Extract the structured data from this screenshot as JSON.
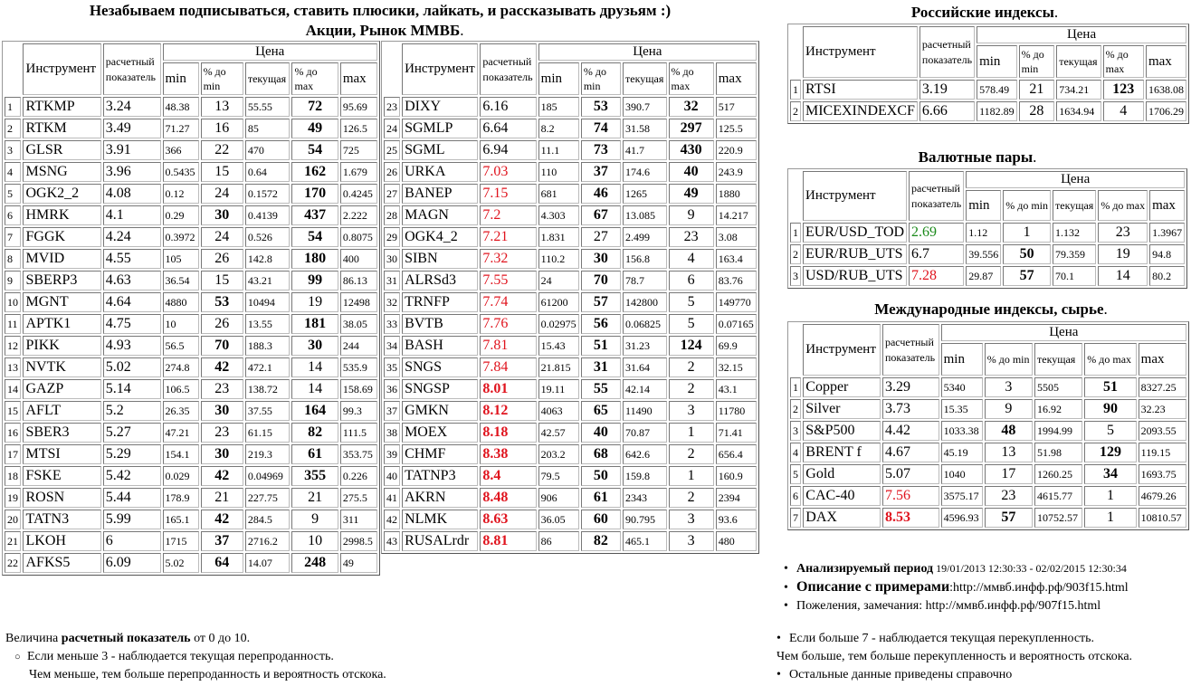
{
  "header": {
    "line1": "Незабываем подписываться, ставить плюсики, лайкать, и рассказывать друзьям :)",
    "line2": "Акции, Рынок ММВБ",
    "line2_dot": "."
  },
  "columns": {
    "instrument": "Инструмент",
    "calc": "расчетный показатель",
    "price": "Цена",
    "min": "min",
    "pct_min": "% до min",
    "current": "текущая",
    "pct_max": "% до max",
    "max": "max"
  },
  "tables": [
    {
      "rows": [
        [
          "1",
          "RTKMP",
          "3.24",
          "48.38",
          "13",
          "55.55",
          "72",
          "95.69"
        ],
        [
          "2",
          "RTKM",
          "3.49",
          "71.27",
          "16",
          "85",
          "49",
          "126.5"
        ],
        [
          "3",
          "GLSR",
          "3.91",
          "366",
          "22",
          "470",
          "54",
          "725"
        ],
        [
          "4",
          "MSNG",
          "3.96",
          "0.5435",
          "15",
          "0.64",
          "162",
          "1.679"
        ],
        [
          "5",
          "OGK2_2",
          "4.08",
          "0.12",
          "24",
          "0.1572",
          "170",
          "0.4245"
        ],
        [
          "6",
          "HMRK",
          "4.1",
          "0.29",
          "30",
          "0.4139",
          "437",
          "2.222"
        ],
        [
          "7",
          "FGGK",
          "4.24",
          "0.3972",
          "24",
          "0.526",
          "54",
          "0.8075"
        ],
        [
          "8",
          "MVID",
          "4.55",
          "105",
          "26",
          "142.8",
          "180",
          "400"
        ],
        [
          "9",
          "SBERP3",
          "4.63",
          "36.54",
          "15",
          "43.21",
          "99",
          "86.13"
        ],
        [
          "10",
          "MGNT",
          "4.64",
          "4880",
          "53",
          "10494",
          "19",
          "12498"
        ],
        [
          "11",
          "APTK1",
          "4.75",
          "10",
          "26",
          "13.55",
          "181",
          "38.05"
        ],
        [
          "12",
          "PIKK",
          "4.93",
          "56.5",
          "70",
          "188.3",
          "30",
          "244"
        ],
        [
          "13",
          "NVTK",
          "5.02",
          "274.8",
          "42",
          "472.1",
          "14",
          "535.9"
        ],
        [
          "14",
          "GAZP",
          "5.14",
          "106.5",
          "23",
          "138.72",
          "14",
          "158.69"
        ],
        [
          "15",
          "AFLT",
          "5.2",
          "26.35",
          "30",
          "37.55",
          "164",
          "99.3"
        ],
        [
          "16",
          "SBER3",
          "5.27",
          "47.21",
          "23",
          "61.15",
          "82",
          "111.5"
        ],
        [
          "17",
          "MTSI",
          "5.29",
          "154.1",
          "30",
          "219.3",
          "61",
          "353.75"
        ],
        [
          "18",
          "FSKE",
          "5.42",
          "0.029",
          "42",
          "0.04969",
          "355",
          "0.226"
        ],
        [
          "19",
          "ROSN",
          "5.44",
          "178.9",
          "21",
          "227.75",
          "21",
          "275.5"
        ],
        [
          "20",
          "TATN3",
          "5.99",
          "165.1",
          "42",
          "284.5",
          "9",
          "311"
        ],
        [
          "21",
          "LKOH",
          "6",
          "1715",
          "37",
          "2716.2",
          "10",
          "2998.5"
        ],
        [
          "22",
          "AFKS5",
          "6.09",
          "5.02",
          "64",
          "14.07",
          "248",
          "49"
        ]
      ]
    },
    {
      "rows": [
        [
          "23",
          "DIXY",
          "6.16",
          "185",
          "53",
          "390.7",
          "32",
          "517"
        ],
        [
          "24",
          "SGMLP",
          "6.64",
          "8.2",
          "74",
          "31.58",
          "297",
          "125.5"
        ],
        [
          "25",
          "SGML",
          "6.94",
          "11.1",
          "73",
          "41.7",
          "430",
          "220.9"
        ],
        [
          "26",
          "URKA",
          "7.03",
          "110",
          "37",
          "174.6",
          "40",
          "243.9"
        ],
        [
          "27",
          "BANEP",
          "7.15",
          "681",
          "46",
          "1265",
          "49",
          "1880"
        ],
        [
          "28",
          "MAGN",
          "7.2",
          "4.303",
          "67",
          "13.085",
          "9",
          "14.217"
        ],
        [
          "29",
          "OGK4_2",
          "7.21",
          "1.831",
          "27",
          "2.499",
          "23",
          "3.08"
        ],
        [
          "30",
          "SIBN",
          "7.32",
          "110.2",
          "30",
          "156.8",
          "4",
          "163.4"
        ],
        [
          "31",
          "ALRSd3",
          "7.55",
          "24",
          "70",
          "78.7",
          "6",
          "83.76"
        ],
        [
          "32",
          "TRNFP",
          "7.74",
          "61200",
          "57",
          "142800",
          "5",
          "149770"
        ],
        [
          "33",
          "BVTB",
          "7.76",
          "0.02975",
          "56",
          "0.06825",
          "5",
          "0.07165"
        ],
        [
          "34",
          "BASH",
          "7.81",
          "15.43",
          "51",
          "31.23",
          "124",
          "69.9"
        ],
        [
          "35",
          "SNGS",
          "7.84",
          "21.815",
          "31",
          "31.64",
          "2",
          "32.15"
        ],
        [
          "36",
          "SNGSP",
          "8.01",
          "19.11",
          "55",
          "42.14",
          "2",
          "43.1"
        ],
        [
          "37",
          "GMKN",
          "8.12",
          "4063",
          "65",
          "11490",
          "3",
          "11780"
        ],
        [
          "38",
          "MOEX",
          "8.18",
          "42.57",
          "40",
          "70.87",
          "1",
          "71.41"
        ],
        [
          "39",
          "CHMF",
          "8.38",
          "203.2",
          "68",
          "642.6",
          "2",
          "656.4"
        ],
        [
          "40",
          "TATNP3",
          "8.4",
          "79.5",
          "50",
          "159.8",
          "1",
          "160.9"
        ],
        [
          "41",
          "AKRN",
          "8.48",
          "906",
          "61",
          "2343",
          "2",
          "2394"
        ],
        [
          "42",
          "NLMK",
          "8.63",
          "36.05",
          "60",
          "90.795",
          "3",
          "93.6"
        ],
        [
          "43",
          "RUSALrdr",
          "8.81",
          "86",
          "82",
          "465.1",
          "3",
          "480"
        ]
      ]
    },
    {
      "title": "Российские индексы",
      "rows": [
        [
          "1",
          "RTSI",
          "3.19",
          "578.49",
          "21",
          "734.21",
          "123",
          "1638.08"
        ],
        [
          "2",
          "MICEXINDEXCF",
          "6.66",
          "1182.89",
          "28",
          "1634.94",
          "4",
          "1706.29"
        ]
      ]
    },
    {
      "title": "Валютные пары",
      "rows": [
        [
          "1",
          "EUR/USD_TOD",
          "2.69",
          "1.12",
          "1",
          "1.132",
          "23",
          "1.3967"
        ],
        [
          "2",
          "EUR/RUB_UTS",
          "6.7",
          "39.556",
          "50",
          "79.359",
          "19",
          "94.8"
        ],
        [
          "3",
          "USD/RUB_UTS",
          "7.28",
          "29.87",
          "57",
          "70.1",
          "14",
          "80.2"
        ]
      ]
    },
    {
      "title": "Международные индексы, сырье",
      "rows": [
        [
          "1",
          "Copper",
          "3.29",
          "5340",
          "3",
          "5505",
          "51",
          "8327.25"
        ],
        [
          "2",
          "Silver",
          "3.73",
          "15.35",
          "9",
          "16.92",
          "90",
          "32.23"
        ],
        [
          "3",
          "S&P500",
          "4.42",
          "1033.38",
          "48",
          "1994.99",
          "5",
          "2093.55"
        ],
        [
          "4",
          "BRENT f",
          "4.67",
          "45.19",
          "13",
          "51.98",
          "129",
          "119.15"
        ],
        [
          "5",
          "Gold",
          "5.07",
          "1040",
          "17",
          "1260.25",
          "34",
          "1693.75"
        ],
        [
          "6",
          "CAC-40",
          "7.56",
          "3575.17",
          "23",
          "4615.77",
          "1",
          "4679.26"
        ],
        [
          "7",
          "DAX",
          "8.53",
          "4596.93",
          "57",
          "10752.57",
          "1",
          "10810.57"
        ]
      ]
    }
  ],
  "info": {
    "period_label": "Анализируемый период",
    "period_value": " 19/01/2013 12:30:33 - 02/02/2015 12:30:34",
    "examples_label": "Описание с примерами",
    "examples_value": ":http://ммвб.инфф.рф/903f15.html",
    "feedback": "Пожеления, замечания: http://ммвб.инфф.рф/907f15.html"
  },
  "legend": {
    "left_prefix": "Величина ",
    "left_bold": "расчетный показатель",
    "left_suffix": " от 0 до 10.",
    "left_item": "Если меньше 3 - наблюдается текущая перепроданность.",
    "left_sub": "Чем меньше, тем больше перепроданность и вероятность отскока.",
    "right_item": "Если больше 7 - наблюдается текущая перекупленность.",
    "right_sub": "Чем больше, тем больше перекупленность и вероятность отскока.",
    "right_item2": "Остальные данные приведены справочно"
  },
  "colors": {
    "oversold": "#1a8a1a",
    "overbought": "#e0141e"
  }
}
